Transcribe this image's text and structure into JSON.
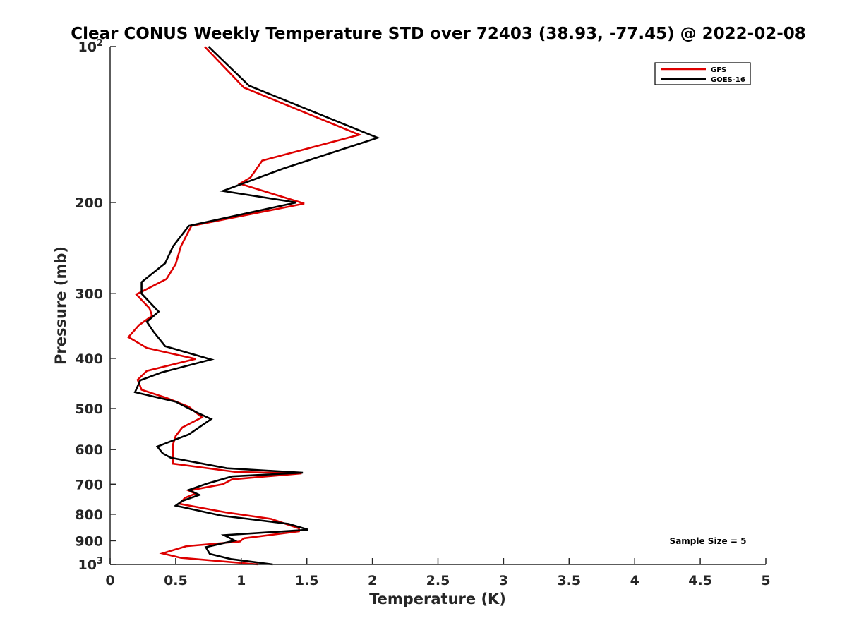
{
  "chart_data": {
    "type": "line",
    "title": "Clear CONUS Weekly Temperature STD over 72403 (38.93, -77.45) @ 2022-02-08",
    "xlabel": "Temperature (K)",
    "ylabel": "Pressure (mb)",
    "xlim": [
      0,
      5
    ],
    "ylim": [
      100,
      1000
    ],
    "y_scale": "log",
    "y_reversed": true,
    "grid": false,
    "legend": "top-right",
    "x_ticks": [
      {
        "value": 0,
        "label": "0"
      },
      {
        "value": 0.5,
        "label": "0.5"
      },
      {
        "value": 1,
        "label": "1"
      },
      {
        "value": 1.5,
        "label": "1.5"
      },
      {
        "value": 2,
        "label": "2"
      },
      {
        "value": 2.5,
        "label": "2.5"
      },
      {
        "value": 3,
        "label": "3"
      },
      {
        "value": 3.5,
        "label": "3.5"
      },
      {
        "value": 4,
        "label": "4"
      },
      {
        "value": 4.5,
        "label": "4.5"
      },
      {
        "value": 5,
        "label": "5"
      }
    ],
    "y_ticks": [
      {
        "value": 100,
        "label": "10",
        "sup": "2"
      },
      {
        "value": 200,
        "label": "200"
      },
      {
        "value": 300,
        "label": "300"
      },
      {
        "value": 400,
        "label": "400"
      },
      {
        "value": 500,
        "label": "500"
      },
      {
        "value": 600,
        "label": "600"
      },
      {
        "value": 700,
        "label": "700"
      },
      {
        "value": 800,
        "label": "800"
      },
      {
        "value": 900,
        "label": "900"
      },
      {
        "value": 1000,
        "label": "10",
        "sup": "3"
      }
    ],
    "annotation": "Sample Size = 5",
    "series": [
      {
        "name": "GFS",
        "color": "#dd0000",
        "points": [
          [
            0.72,
            100
          ],
          [
            1.02,
            120
          ],
          [
            1.9,
            148
          ],
          [
            1.16,
            166
          ],
          [
            1.07,
            179
          ],
          [
            0.99,
            184
          ],
          [
            1.48,
            201
          ],
          [
            0.62,
            222
          ],
          [
            0.54,
            243
          ],
          [
            0.5,
            263
          ],
          [
            0.43,
            281
          ],
          [
            0.2,
            301
          ],
          [
            0.3,
            320
          ],
          [
            0.32,
            331
          ],
          [
            0.22,
            345
          ],
          [
            0.14,
            364
          ],
          [
            0.28,
            382
          ],
          [
            0.65,
            401
          ],
          [
            0.28,
            423
          ],
          [
            0.21,
            440
          ],
          [
            0.24,
            460
          ],
          [
            0.43,
            477
          ],
          [
            0.6,
            496
          ],
          [
            0.7,
            520
          ],
          [
            0.55,
            544
          ],
          [
            0.5,
            565
          ],
          [
            0.48,
            586
          ],
          [
            0.48,
            639
          ],
          [
            0.96,
            663
          ],
          [
            1.46,
            667
          ],
          [
            0.93,
            685
          ],
          [
            0.86,
            700
          ],
          [
            0.6,
            720
          ],
          [
            0.65,
            730
          ],
          [
            0.57,
            744
          ],
          [
            0.53,
            764
          ],
          [
            0.88,
            793
          ],
          [
            1.23,
            817
          ],
          [
            1.44,
            852
          ],
          [
            1.44,
            863
          ],
          [
            1.02,
            890
          ],
          [
            0.99,
            903
          ],
          [
            0.58,
            922
          ],
          [
            0.4,
            952
          ],
          [
            0.54,
            971
          ],
          [
            1.13,
            1000
          ]
        ]
      },
      {
        "name": "GOES-16",
        "color": "#000000",
        "points": [
          [
            0.75,
            100
          ],
          [
            1.06,
            119
          ],
          [
            2.04,
            150
          ],
          [
            1.32,
            172
          ],
          [
            0.86,
            190
          ],
          [
            1.42,
            200
          ],
          [
            0.6,
            222
          ],
          [
            0.48,
            243
          ],
          [
            0.42,
            262
          ],
          [
            0.24,
            285
          ],
          [
            0.24,
            300
          ],
          [
            0.37,
            325
          ],
          [
            0.28,
            340
          ],
          [
            0.33,
            355
          ],
          [
            0.42,
            379
          ],
          [
            0.77,
            402
          ],
          [
            0.39,
            426
          ],
          [
            0.23,
            441
          ],
          [
            0.19,
            465
          ],
          [
            0.5,
            485
          ],
          [
            0.67,
            510
          ],
          [
            0.77,
            524
          ],
          [
            0.6,
            561
          ],
          [
            0.36,
            592
          ],
          [
            0.4,
            610
          ],
          [
            0.46,
            622
          ],
          [
            0.89,
            652
          ],
          [
            1.47,
            665
          ],
          [
            0.93,
            676
          ],
          [
            0.74,
            698
          ],
          [
            0.6,
            718
          ],
          [
            0.68,
            734
          ],
          [
            0.55,
            754
          ],
          [
            0.5,
            770
          ],
          [
            0.85,
            805
          ],
          [
            1.36,
            835
          ],
          [
            1.51,
            857
          ],
          [
            0.87,
            878
          ],
          [
            0.95,
            899
          ],
          [
            0.73,
            926
          ],
          [
            0.76,
            954
          ],
          [
            0.92,
            976
          ],
          [
            1.24,
            1000
          ]
        ]
      }
    ]
  }
}
